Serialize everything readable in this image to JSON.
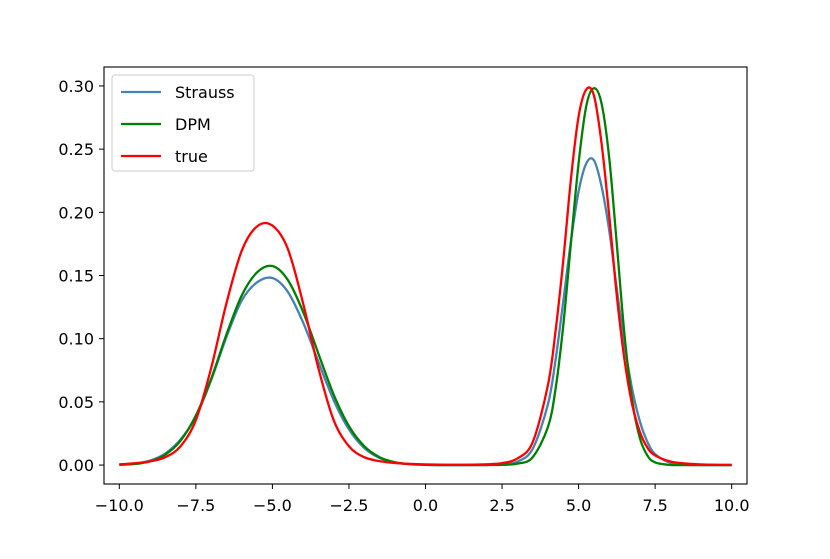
{
  "chart_data": {
    "type": "line",
    "title": "",
    "xlabel": "",
    "ylabel": "",
    "xlim": [
      -10.5,
      10.5
    ],
    "ylim": [
      -0.015,
      0.315
    ],
    "xticks": [
      -10.0,
      -7.5,
      -5.0,
      -2.5,
      0.0,
      2.5,
      5.0,
      7.5,
      10.0
    ],
    "xtick_labels": [
      "−10.0",
      "−7.5",
      "−5.0",
      "−2.5",
      "0.0",
      "2.5",
      "5.0",
      "7.5",
      "10.0"
    ],
    "yticks": [
      0.0,
      0.05,
      0.1,
      0.15,
      0.2,
      0.25,
      0.3
    ],
    "ytick_labels": [
      "0.00",
      "0.05",
      "0.10",
      "0.15",
      "0.20",
      "0.25",
      "0.30"
    ],
    "grid": false,
    "legend": "top-left",
    "x": [
      -10.0,
      -9.5,
      -9.0,
      -8.5,
      -8.0,
      -7.5,
      -7.0,
      -6.5,
      -6.0,
      -5.5,
      -5.0,
      -4.5,
      -4.0,
      -3.5,
      -3.0,
      -2.5,
      -2.0,
      -1.5,
      -1.0,
      -0.5,
      0.0,
      0.5,
      1.0,
      1.5,
      2.0,
      2.5,
      3.0,
      3.5,
      4.0,
      4.25,
      4.5,
      4.75,
      5.0,
      5.25,
      5.5,
      5.75,
      6.0,
      6.25,
      6.5,
      6.75,
      7.0,
      7.25,
      7.5,
      8.0,
      8.5,
      9.0,
      9.5,
      10.0
    ],
    "series": [
      {
        "name": "Strauss",
        "color": "#4682b4",
        "values": [
          0.0003,
          0.0011,
          0.0035,
          0.0091,
          0.0202,
          0.0382,
          0.0672,
          0.1014,
          0.1303,
          0.1446,
          0.148,
          0.1372,
          0.113,
          0.0818,
          0.0514,
          0.0282,
          0.0135,
          0.0056,
          0.002,
          0.0006,
          0.0002,
          0.0,
          0.0,
          0.0,
          0.0001,
          0.0005,
          0.0027,
          0.0128,
          0.0482,
          0.0836,
          0.1297,
          0.1773,
          0.2165,
          0.2386,
          0.2412,
          0.2205,
          0.1856,
          0.1389,
          0.0954,
          0.0601,
          0.0347,
          0.0182,
          0.0087,
          0.0017,
          0.0003,
          0.0,
          0.0,
          0.0
        ]
      },
      {
        "name": "DPM",
        "color": "#008000",
        "values": [
          0.0002,
          0.0008,
          0.0029,
          0.0082,
          0.0193,
          0.0392,
          0.0682,
          0.1034,
          0.1343,
          0.1525,
          0.1575,
          0.1466,
          0.1214,
          0.0883,
          0.0558,
          0.0308,
          0.0149,
          0.0062,
          0.0022,
          0.0007,
          0.0002,
          0.0,
          0.0,
          0.0,
          0.0,
          0.0002,
          0.0011,
          0.0062,
          0.0302,
          0.0606,
          0.1106,
          0.1758,
          0.2389,
          0.2841,
          0.2982,
          0.2861,
          0.2431,
          0.1741,
          0.1028,
          0.0513,
          0.0214,
          0.0074,
          0.0021,
          0.0001,
          0.0,
          0.0,
          0.0,
          0.0
        ]
      },
      {
        "name": "true",
        "color": "#ff0000",
        "values": [
          0.0005,
          0.0014,
          0.0029,
          0.0062,
          0.0149,
          0.0356,
          0.0768,
          0.1282,
          0.1697,
          0.1889,
          0.1895,
          0.1713,
          0.1282,
          0.0768,
          0.0356,
          0.0149,
          0.0062,
          0.0031,
          0.0016,
          0.0009,
          0.0005,
          0.0003,
          0.0002,
          0.0003,
          0.0006,
          0.0015,
          0.0052,
          0.0181,
          0.0635,
          0.1066,
          0.1621,
          0.2265,
          0.2759,
          0.2972,
          0.2925,
          0.2545,
          0.1974,
          0.1335,
          0.0832,
          0.0478,
          0.0262,
          0.0137,
          0.0076,
          0.0028,
          0.0012,
          0.0005,
          0.0002,
          0.0001
        ]
      }
    ]
  }
}
